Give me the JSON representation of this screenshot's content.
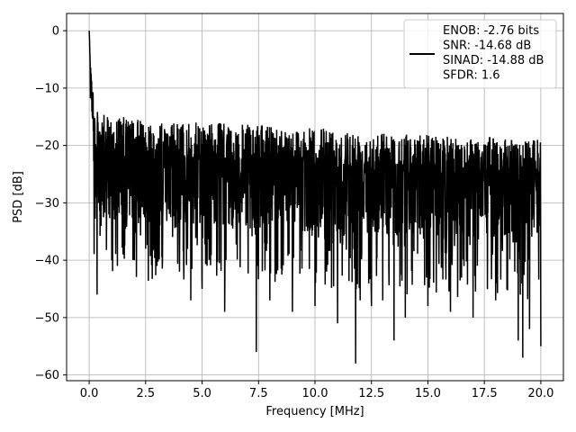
{
  "chart_data": {
    "type": "line",
    "xlabel": "Frequency [MHz]",
    "ylabel": "PSD [dB]",
    "xlim": [
      -1.0,
      21.0
    ],
    "ylim": [
      -61.0,
      3.0
    ],
    "x_ticks": [
      0.0,
      2.5,
      5.0,
      7.5,
      10.0,
      12.5,
      15.0,
      17.5,
      20.0
    ],
    "x_tick_labels": [
      "0.0",
      "2.5",
      "5.0",
      "7.5",
      "10.0",
      "12.5",
      "15.0",
      "17.5",
      "20.0"
    ],
    "y_ticks": [
      0,
      -10,
      -20,
      -30,
      -40,
      -50,
      -60
    ],
    "y_tick_labels": [
      "0",
      "−10",
      "−20",
      "−30",
      "−40",
      "−50",
      "−60"
    ],
    "grid": true,
    "legend_position": "top-right",
    "legend_lines": [
      "ENOB: -2.76 bits",
      "SNR: -14.68 dB",
      "SINAD: -14.88 dB",
      "SFDR: 1.6"
    ],
    "series": [
      {
        "color": "#000000",
        "x": [
          0.0,
          0.02,
          0.05,
          0.1,
          0.15,
          0.2,
          0.25,
          0.3,
          0.35,
          0.4,
          0.5,
          0.75,
          1.0,
          1.25,
          1.5,
          2.0,
          2.5,
          3.0,
          4.0,
          4.5,
          5.0,
          6.0,
          7.4,
          8.0,
          9.0,
          10.0,
          11.0,
          11.8,
          12.0,
          12.5,
          13.0,
          13.5,
          14.0,
          15.0,
          16.0,
          17.0,
          18.0,
          19.0,
          19.2,
          19.5,
          20.0
        ],
        "y": [
          0,
          -2,
          -9,
          -11,
          -15,
          -18,
          -24,
          -29,
          -46,
          -27,
          -30,
          -28,
          -40,
          -41,
          -39,
          -40,
          -38,
          -41,
          -42,
          -47,
          -45,
          -49,
          -56,
          -47,
          -49,
          -48,
          -51,
          -58,
          -47,
          -48,
          -47,
          -54,
          -50,
          -48,
          -49,
          -50,
          -47,
          -54,
          -57,
          -52,
          -55
        ],
        "upper_envelope": [
          0,
          -2,
          -9,
          -10.5,
          -12,
          -13,
          -13,
          -14,
          -14,
          -14,
          -14,
          -15,
          -15,
          -15,
          -15,
          -15.5,
          -15.5,
          -16,
          -16,
          -16,
          -16,
          -16,
          -16.5,
          -16.5,
          -17,
          -17,
          -17,
          -17.5,
          -17.5,
          -17.5,
          -17.5,
          -18,
          -18,
          -18,
          -18.5,
          -18.5,
          -18.5,
          -19,
          -19,
          -19,
          -19
        ]
      }
    ]
  }
}
